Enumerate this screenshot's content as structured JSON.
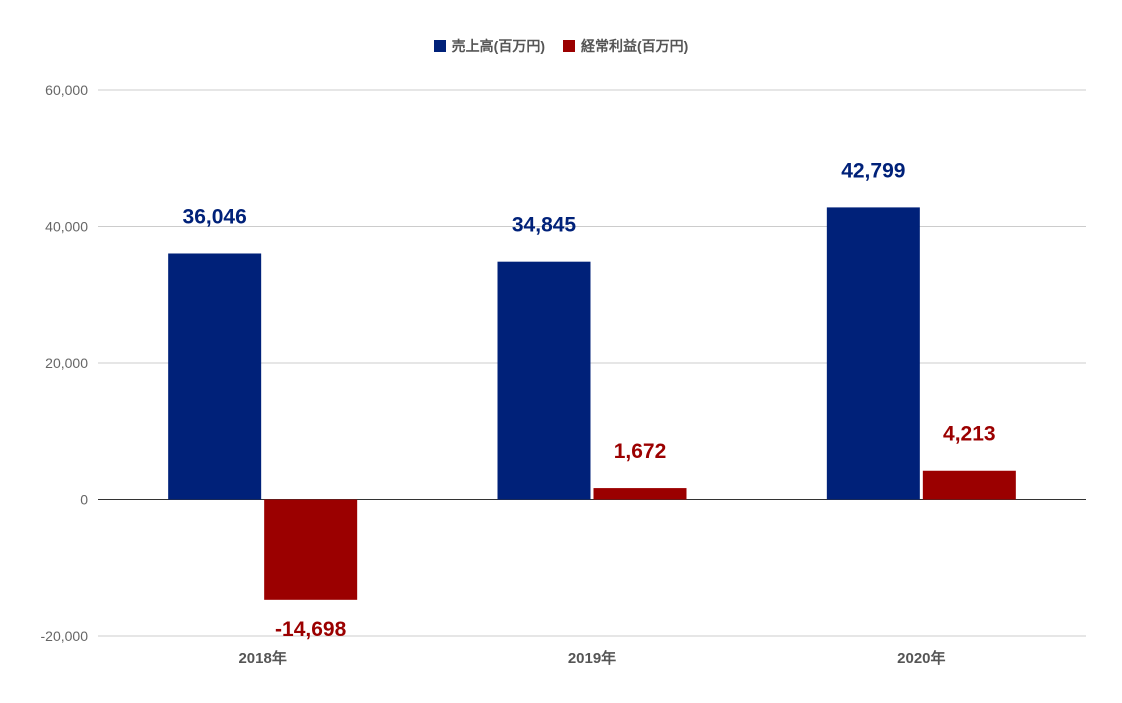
{
  "chart_data": {
    "type": "bar",
    "categories": [
      "2018年",
      "2019年",
      "2020年"
    ],
    "series": [
      {
        "name": "売上高(百万円)",
        "color": "#002179",
        "values": [
          36046,
          34845,
          42799
        ],
        "labels": [
          "36,046",
          "34,845",
          "42,799"
        ]
      },
      {
        "name": "経常利益(百万円)",
        "color": "#9b0000",
        "values": [
          -14698,
          1672,
          4213
        ],
        "labels": [
          "-14,698",
          "1,672",
          "4,213"
        ]
      }
    ],
    "ylim": [
      -20000,
      60000
    ],
    "yticks": [
      -20000,
      0,
      20000,
      40000,
      60000
    ],
    "ytick_labels": [
      "-20,000",
      "0",
      "20,000",
      "40,000",
      "60,000"
    ],
    "grid": true,
    "legend_position": "top-center",
    "title": "",
    "xlabel": "",
    "ylabel": ""
  }
}
